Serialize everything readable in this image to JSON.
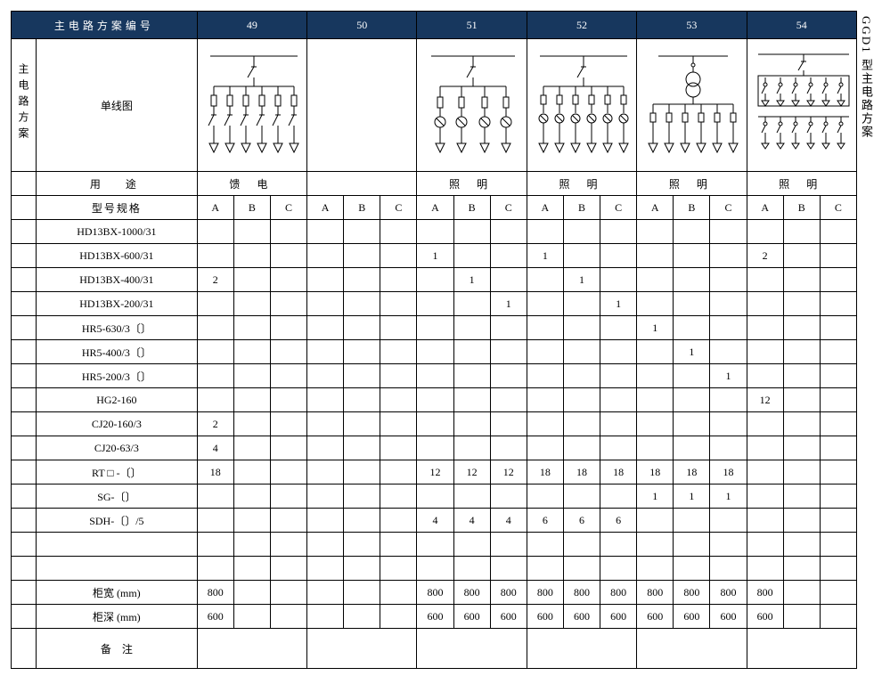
{
  "side_title": "GGD1 型主电路方案",
  "header": {
    "scheme_label": "主电路方案编号",
    "numbers": [
      "49",
      "50",
      "51",
      "52",
      "53",
      "54"
    ]
  },
  "left_group_label": "主电路方案",
  "row_labels": {
    "diagram": "单线图",
    "usage": "用　途",
    "spec": "型号规格",
    "width": "柜宽 (mm)",
    "depth": "柜深 (mm)",
    "notes": "备　注"
  },
  "usage_values": [
    "馈 电",
    "",
    "照 明",
    "照 明",
    "照 明",
    "照 明"
  ],
  "abc": [
    "A",
    "B",
    "C"
  ],
  "spec_rows": [
    {
      "label": "HD13BX-1000/31",
      "v": [
        "",
        "",
        "",
        "",
        "",
        "",
        "",
        "",
        "",
        "",
        "",
        "",
        "",
        "",
        "",
        "",
        "",
        ""
      ]
    },
    {
      "label": "HD13BX-600/31",
      "v": [
        "",
        "",
        "",
        "",
        "",
        "",
        "1",
        "",
        "",
        "1",
        "",
        "",
        "",
        "",
        "",
        "2",
        "",
        ""
      ]
    },
    {
      "label": "HD13BX-400/31",
      "v": [
        "2",
        "",
        "",
        "",
        "",
        "",
        "",
        "1",
        "",
        "",
        "1",
        "",
        "",
        "",
        "",
        "",
        "",
        ""
      ]
    },
    {
      "label": "HD13BX-200/31",
      "v": [
        "",
        "",
        "",
        "",
        "",
        "",
        "",
        "",
        "1",
        "",
        "",
        "1",
        "",
        "",
        "",
        "",
        "",
        ""
      ]
    },
    {
      "label": "HR5-630/3〔〕",
      "v": [
        "",
        "",
        "",
        "",
        "",
        "",
        "",
        "",
        "",
        "",
        "",
        "",
        "1",
        "",
        "",
        "",
        "",
        ""
      ]
    },
    {
      "label": "HR5-400/3〔〕",
      "v": [
        "",
        "",
        "",
        "",
        "",
        "",
        "",
        "",
        "",
        "",
        "",
        "",
        "",
        "1",
        "",
        "",
        "",
        ""
      ]
    },
    {
      "label": "HR5-200/3〔〕",
      "v": [
        "",
        "",
        "",
        "",
        "",
        "",
        "",
        "",
        "",
        "",
        "",
        "",
        "",
        "",
        "1",
        "",
        "",
        ""
      ]
    },
    {
      "label": "HG2-160",
      "v": [
        "",
        "",
        "",
        "",
        "",
        "",
        "",
        "",
        "",
        "",
        "",
        "",
        "",
        "",
        "",
        "12",
        "",
        ""
      ]
    },
    {
      "label": "CJ20-160/3",
      "v": [
        "2",
        "",
        "",
        "",
        "",
        "",
        "",
        "",
        "",
        "",
        "",
        "",
        "",
        "",
        "",
        "",
        "",
        ""
      ]
    },
    {
      "label": "CJ20-63/3",
      "v": [
        "4",
        "",
        "",
        "",
        "",
        "",
        "",
        "",
        "",
        "",
        "",
        "",
        "",
        "",
        "",
        "",
        "",
        ""
      ]
    },
    {
      "label": "RT □ -〔〕",
      "v": [
        "18",
        "",
        "",
        "",
        "",
        "",
        "12",
        "12",
        "12",
        "18",
        "18",
        "18",
        "18",
        "18",
        "18",
        "",
        "",
        ""
      ]
    },
    {
      "label": "SG-〔〕",
      "v": [
        "",
        "",
        "",
        "",
        "",
        "",
        "",
        "",
        "",
        "",
        "",
        "",
        "1",
        "1",
        "1",
        "",
        "",
        ""
      ]
    },
    {
      "label": "SDH-〔〕/5",
      "v": [
        "",
        "",
        "",
        "",
        "",
        "",
        "4",
        "4",
        "4",
        "6",
        "6",
        "6",
        "",
        "",
        "",
        "",
        "",
        ""
      ]
    },
    {
      "label": "",
      "v": [
        "",
        "",
        "",
        "",
        "",
        "",
        "",
        "",
        "",
        "",
        "",
        "",
        "",
        "",
        "",
        "",
        "",
        ""
      ]
    },
    {
      "label": "",
      "v": [
        "",
        "",
        "",
        "",
        "",
        "",
        "",
        "",
        "",
        "",
        "",
        "",
        "",
        "",
        "",
        "",
        "",
        ""
      ]
    }
  ],
  "width_row": [
    "800",
    "",
    "",
    "",
    "",
    "",
    "800",
    "800",
    "800",
    "800",
    "800",
    "800",
    "800",
    "800",
    "800",
    "800",
    "",
    ""
  ],
  "depth_row": [
    "600",
    "",
    "",
    "",
    "",
    "",
    "600",
    "600",
    "600",
    "600",
    "600",
    "600",
    "600",
    "600",
    "600",
    "600",
    "",
    ""
  ],
  "colors": {
    "header_bg": "#17375e",
    "header_fg": "#ffffff",
    "border": "#000000"
  },
  "col_widths": {
    "stub1": 28,
    "stub2": 180,
    "data": 41
  },
  "diagrams": {
    "49": "feeder-6branch",
    "50": "",
    "51": "lighting-4ct",
    "52": "lighting-6ct",
    "53": "lighting-xfmr-6",
    "54": "lighting-12fuse"
  }
}
